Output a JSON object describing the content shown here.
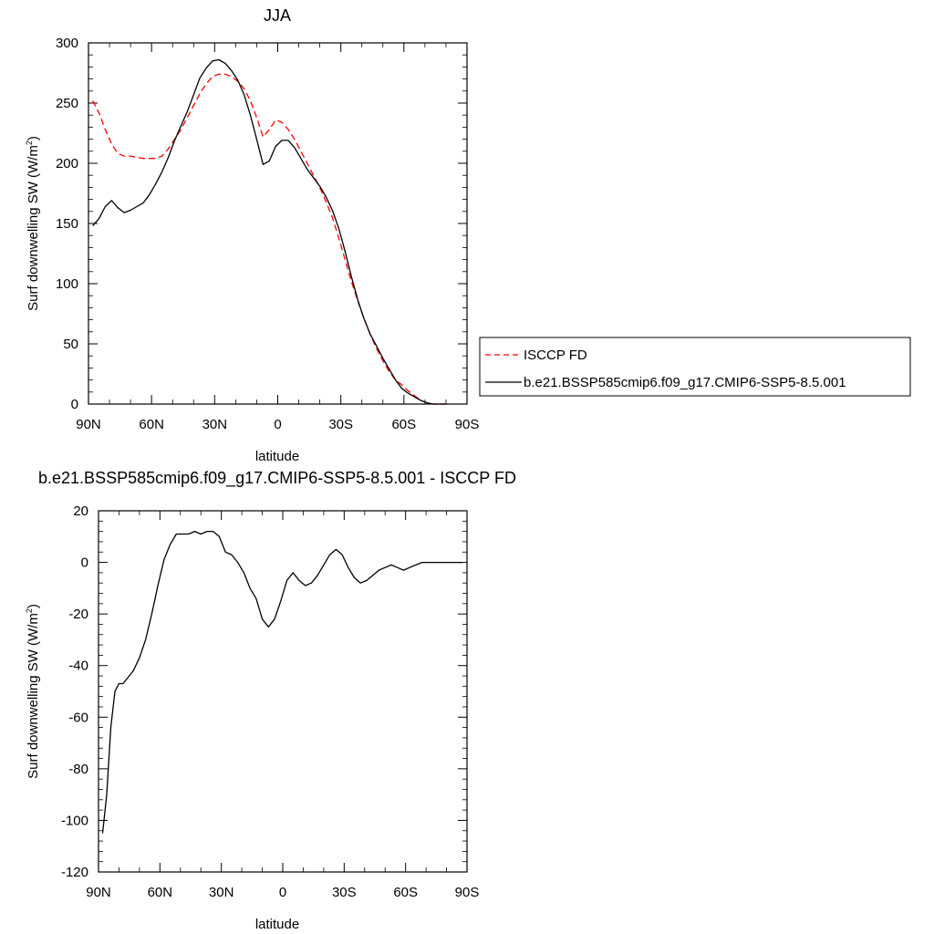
{
  "chart_data": [
    {
      "type": "line",
      "title": "JJA",
      "xlabel": "latitude",
      "ylabel": "Surf downwelling SW (W/m²)",
      "ylabel_main": "Surf downwelling SW (W/m",
      "ylabel_sup": "2",
      "ylabel_close": ")",
      "xlim": [
        -90,
        90
      ],
      "ylim": [
        0,
        300
      ],
      "xticks": [
        {
          "value": -90,
          "label": "90N"
        },
        {
          "value": -60,
          "label": "60N"
        },
        {
          "value": -30,
          "label": "30N"
        },
        {
          "value": 0,
          "label": "0"
        },
        {
          "value": 30,
          "label": "30S"
        },
        {
          "value": 60,
          "label": "60S"
        },
        {
          "value": 90,
          "label": "90S"
        }
      ],
      "yticks": [
        0,
        50,
        100,
        150,
        200,
        250,
        300
      ],
      "legend_position": "right",
      "series": [
        {
          "name": "ISCCP FD",
          "color": "#ff0000",
          "dash": "dashed",
          "points": [
            [
              -88,
              252
            ],
            [
              -85,
              242
            ],
            [
              -82,
              228
            ],
            [
              -79,
              216
            ],
            [
              -76,
              208
            ],
            [
              -73,
              206
            ],
            [
              -70,
              206
            ],
            [
              -67,
              205
            ],
            [
              -64,
              204
            ],
            [
              -61,
              204
            ],
            [
              -58,
              204
            ],
            [
              -55,
              206
            ],
            [
              -52,
              212
            ],
            [
              -49,
              220
            ],
            [
              -46,
              228
            ],
            [
              -43,
              238
            ],
            [
              -40,
              248
            ],
            [
              -37,
              258
            ],
            [
              -34,
              266
            ],
            [
              -31,
              272
            ],
            [
              -28,
              274
            ],
            [
              -25,
              274
            ],
            [
              -22,
              272
            ],
            [
              -19,
              268
            ],
            [
              -16,
              262
            ],
            [
              -13,
              252
            ],
            [
              -10,
              238
            ],
            [
              -7,
              222
            ],
            [
              -4,
              228
            ],
            [
              -1,
              236
            ],
            [
              2,
              234
            ],
            [
              5,
              228
            ],
            [
              8,
              220
            ],
            [
              11,
              210
            ],
            [
              14,
              200
            ],
            [
              17,
              190
            ],
            [
              20,
              180
            ],
            [
              23,
              168
            ],
            [
              26,
              155
            ],
            [
              29,
              138
            ],
            [
              32,
              120
            ],
            [
              35,
              102
            ],
            [
              38,
              86
            ],
            [
              41,
              71
            ],
            [
              44,
              58
            ],
            [
              47,
              46
            ],
            [
              50,
              36
            ],
            [
              53,
              27
            ],
            [
              56,
              20
            ],
            [
              59,
              16
            ],
            [
              62,
              11
            ],
            [
              65,
              7
            ],
            [
              68,
              3
            ],
            [
              71,
              1
            ],
            [
              74,
              0
            ],
            [
              77,
              0
            ],
            [
              80,
              0
            ]
          ]
        },
        {
          "name": "b.e21.BSSP585cmip6.f09_g17.CMIP6-SSP5-8.5.001",
          "color": "#000000",
          "dash": "solid",
          "points": [
            [
              -88,
              148
            ],
            [
              -85,
              154
            ],
            [
              -82,
              164
            ],
            [
              -79,
              169
            ],
            [
              -76,
              163
            ],
            [
              -73,
              159
            ],
            [
              -70,
              161
            ],
            [
              -67,
              164
            ],
            [
              -64,
              167
            ],
            [
              -61,
              174
            ],
            [
              -58,
              183
            ],
            [
              -55,
              193
            ],
            [
              -52,
              205
            ],
            [
              -49,
              219
            ],
            [
              -46,
              231
            ],
            [
              -43,
              243
            ],
            [
              -40,
              257
            ],
            [
              -37,
              271
            ],
            [
              -34,
              279
            ],
            [
              -31,
              285
            ],
            [
              -28,
              286
            ],
            [
              -25,
              283
            ],
            [
              -22,
              277
            ],
            [
              -19,
              269
            ],
            [
              -16,
              257
            ],
            [
              -13,
              240
            ],
            [
              -10,
              220
            ],
            [
              -7,
              199
            ],
            [
              -4,
              202
            ],
            [
              -1,
              214
            ],
            [
              2,
              219
            ],
            [
              5,
              219
            ],
            [
              8,
              213
            ],
            [
              11,
              204
            ],
            [
              14,
              195
            ],
            [
              17,
              188
            ],
            [
              20,
              181
            ],
            [
              23,
              172
            ],
            [
              26,
              161
            ],
            [
              29,
              146
            ],
            [
              32,
              127
            ],
            [
              35,
              106
            ],
            [
              38,
              87
            ],
            [
              41,
              71
            ],
            [
              44,
              58
            ],
            [
              47,
              48
            ],
            [
              50,
              38
            ],
            [
              53,
              29
            ],
            [
              56,
              20
            ],
            [
              59,
              13
            ],
            [
              62,
              9
            ],
            [
              65,
              6
            ],
            [
              68,
              3
            ],
            [
              71,
              1
            ],
            [
              74,
              0
            ],
            [
              77,
              0
            ],
            [
              80,
              0
            ]
          ]
        }
      ]
    },
    {
      "type": "line",
      "title": "b.e21.BSSP585cmip6.f09_g17.CMIP6-SSP5-8.5.001 - ISCCP FD",
      "xlabel": "latitude",
      "ylabel": "Surf downwelling SW (W/m²)",
      "ylabel_main": "Surf downwelling SW (W/m",
      "ylabel_sup": "2",
      "ylabel_close": ")",
      "xlim": [
        -90,
        90
      ],
      "ylim": [
        -120,
        20
      ],
      "xticks": [
        {
          "value": -90,
          "label": "90N"
        },
        {
          "value": -60,
          "label": "60N"
        },
        {
          "value": -30,
          "label": "30N"
        },
        {
          "value": 0,
          "label": "0"
        },
        {
          "value": 30,
          "label": "30S"
        },
        {
          "value": 60,
          "label": "60S"
        },
        {
          "value": 90,
          "label": "90S"
        }
      ],
      "yticks": [
        -120,
        -100,
        -80,
        -60,
        -40,
        -20,
        0,
        20
      ],
      "series": [
        {
          "color": "#000000",
          "dash": "solid",
          "points": [
            [
              -88,
              -105
            ],
            [
              -86,
              -90
            ],
            [
              -84,
              -64
            ],
            [
              -82,
              -50
            ],
            [
              -80,
              -47
            ],
            [
              -78,
              -47
            ],
            [
              -76,
              -45
            ],
            [
              -73,
              -42
            ],
            [
              -70,
              -37
            ],
            [
              -67,
              -30
            ],
            [
              -64,
              -20
            ],
            [
              -61,
              -9
            ],
            [
              -58,
              1
            ],
            [
              -55,
              7
            ],
            [
              -52,
              11
            ],
            [
              -49,
              11
            ],
            [
              -46,
              11
            ],
            [
              -43,
              12
            ],
            [
              -40,
              11
            ],
            [
              -37,
              12
            ],
            [
              -34,
              12
            ],
            [
              -31,
              10
            ],
            [
              -28,
              4
            ],
            [
              -25,
              3
            ],
            [
              -22,
              0
            ],
            [
              -19,
              -4
            ],
            [
              -16,
              -10
            ],
            [
              -13,
              -14
            ],
            [
              -10,
              -22
            ],
            [
              -7,
              -25
            ],
            [
              -4,
              -22
            ],
            [
              -1,
              -15
            ],
            [
              2,
              -7
            ],
            [
              5,
              -4
            ],
            [
              8,
              -7
            ],
            [
              11,
              -9
            ],
            [
              14,
              -8
            ],
            [
              17,
              -5
            ],
            [
              20,
              -1
            ],
            [
              23,
              3
            ],
            [
              26,
              5
            ],
            [
              29,
              3
            ],
            [
              32,
              -2
            ],
            [
              35,
              -6
            ],
            [
              38,
              -8
            ],
            [
              41,
              -7
            ],
            [
              44,
              -5
            ],
            [
              47,
              -3
            ],
            [
              50,
              -2
            ],
            [
              53,
              -1
            ],
            [
              56,
              -2
            ],
            [
              59,
              -3
            ],
            [
              62,
              -2
            ],
            [
              65,
              -1
            ],
            [
              68,
              0
            ],
            [
              71,
              0
            ],
            [
              74,
              0
            ],
            [
              77,
              0
            ],
            [
              80,
              0
            ],
            [
              83,
              0
            ],
            [
              86,
              0
            ],
            [
              88,
              0
            ]
          ]
        }
      ]
    }
  ]
}
